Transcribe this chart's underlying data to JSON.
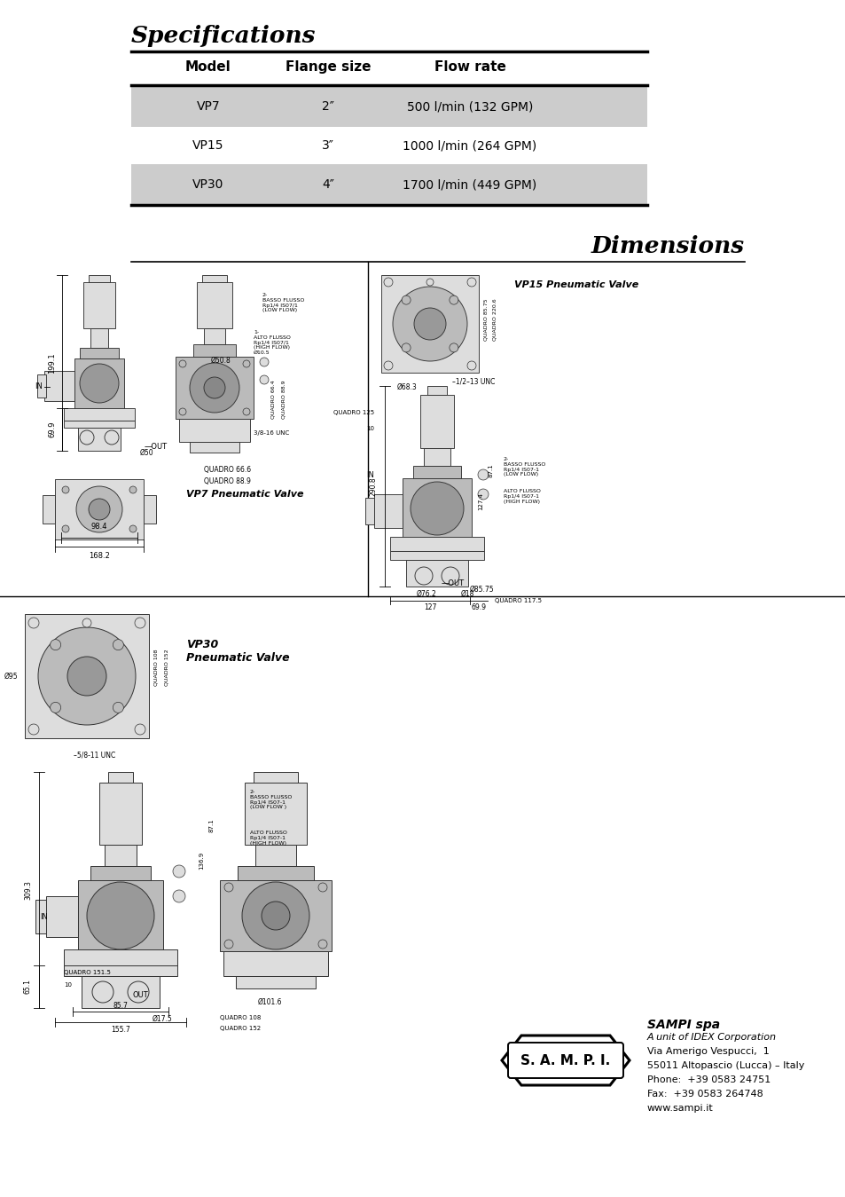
{
  "page_bg": "#ffffff",
  "spec_title": "Specifications",
  "dim_title": "Dimensions",
  "table_headers": [
    "Model",
    "Flange size",
    "Flow rate"
  ],
  "table_rows": [
    [
      "VP7",
      "2″",
      "500 l/min (132 GPM)"
    ],
    [
      "VP15",
      "3″",
      "1000 l/min (264 GPM)"
    ],
    [
      "VP30",
      "4″",
      "1700 l/min (449 GPM)"
    ]
  ],
  "row_bg_shaded": "#cccccc",
  "row_bg_white": "#ffffff",
  "company_name": "SAMPI spa",
  "company_line1": "A unit of IDEX Corporation",
  "company_line2": "Via Amerigo Vespucci,  1",
  "company_line3": "55011 Altopascio (Lucca) – Italy",
  "company_line4": "Phone:  +39 0583 24751",
  "company_line5": "Fax:  +39 0583 264748",
  "company_line6": "www.sampi.it",
  "vp7_label": "VP7 Pneumatic Valve",
  "vp15_label": "VP15 Pneumatic Valve",
  "vp30_label": "VP30\nPneumatic Valve",
  "line_color": "#000000",
  "draw_gray": "#888888",
  "draw_light": "#cccccc",
  "draw_mid": "#aaaaaa"
}
